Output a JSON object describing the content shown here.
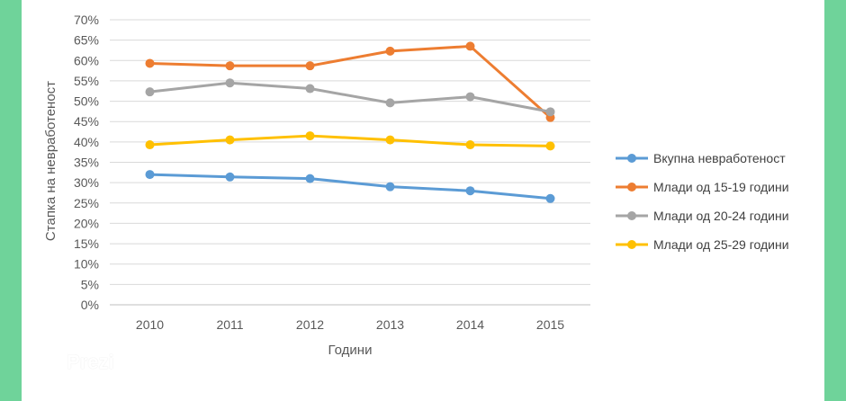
{
  "brand": {
    "logo_text": "Prezi",
    "logo_icon": "prezi-logo-icon",
    "colors": {
      "side": "#6fd39a",
      "slide": "#ffffff"
    }
  },
  "chart_data": {
    "type": "line",
    "title": "",
    "xlabel": "Години",
    "ylabel": "Стапка на невработеност",
    "categories": [
      "2010",
      "2011",
      "2012",
      "2013",
      "2014",
      "2015"
    ],
    "ylim": [
      0,
      70
    ],
    "yticks": [
      "0%",
      "5%",
      "10%",
      "15%",
      "20%",
      "25%",
      "30%",
      "35%",
      "40%",
      "45%",
      "50%",
      "55%",
      "60%",
      "65%",
      "70%"
    ],
    "grid": true,
    "legend": "right",
    "series": [
      {
        "name": "Вкупна невработеност",
        "color": "#5b9bd5",
        "values": [
          32.0,
          31.4,
          31.0,
          29.0,
          28.0,
          26.1
        ]
      },
      {
        "name": "Млади од 15-19 години",
        "color": "#ed7d31",
        "values": [
          59.3,
          58.7,
          58.7,
          62.3,
          63.5,
          46.0
        ]
      },
      {
        "name": "Млади од 20-24 години",
        "color": "#a5a5a5",
        "values": [
          52.3,
          54.5,
          53.1,
          49.6,
          51.1,
          47.4
        ]
      },
      {
        "name": "Млади од 25-29 години",
        "color": "#ffc000",
        "values": [
          39.3,
          40.5,
          41.5,
          40.5,
          39.3,
          39.0
        ]
      }
    ]
  }
}
